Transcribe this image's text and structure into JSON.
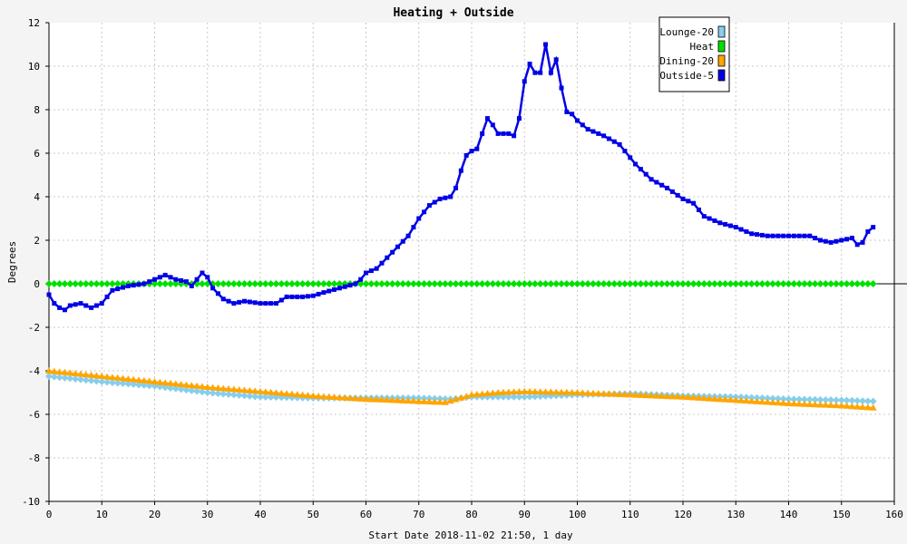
{
  "chart_data": {
    "type": "line",
    "title": "Heating + Outside",
    "xlabel": "Start Date 2018-11-02 21:50, 1 day",
    "ylabel": "Degrees",
    "xlim": [
      0,
      160
    ],
    "ylim": [
      -10,
      12
    ],
    "xticks": [
      0,
      10,
      20,
      30,
      40,
      50,
      60,
      70,
      80,
      90,
      100,
      110,
      120,
      130,
      140,
      150,
      160
    ],
    "yticks": [
      -10,
      -8,
      -6,
      -4,
      -2,
      0,
      2,
      4,
      6,
      8,
      10,
      12
    ],
    "grid": true,
    "legend_position": "top-right",
    "series": [
      {
        "name": "Lounge-20",
        "color": "#87ceeb",
        "marker": "diamond",
        "points": [
          [
            0,
            -4.25
          ],
          [
            10,
            -4.5
          ],
          [
            20,
            -4.7
          ],
          [
            30,
            -5.0
          ],
          [
            40,
            -5.2
          ],
          [
            50,
            -5.25
          ],
          [
            60,
            -5.25
          ],
          [
            70,
            -5.25
          ],
          [
            76,
            -5.3
          ],
          [
            80,
            -5.2
          ],
          [
            90,
            -5.2
          ],
          [
            100,
            -5.1
          ],
          [
            110,
            -5.05
          ],
          [
            120,
            -5.15
          ],
          [
            130,
            -5.2
          ],
          [
            140,
            -5.3
          ],
          [
            150,
            -5.35
          ],
          [
            156,
            -5.4
          ]
        ]
      },
      {
        "name": "Heat",
        "color": "#00e000",
        "marker": "diamond",
        "points": [
          [
            0,
            0
          ],
          [
            156,
            0
          ]
        ]
      },
      {
        "name": "Dining-20",
        "color": "#ffa500",
        "marker": "triangle",
        "points": [
          [
            0,
            -4.0
          ],
          [
            10,
            -4.25
          ],
          [
            20,
            -4.5
          ],
          [
            30,
            -4.75
          ],
          [
            40,
            -4.95
          ],
          [
            50,
            -5.15
          ],
          [
            60,
            -5.3
          ],
          [
            70,
            -5.4
          ],
          [
            75,
            -5.45
          ],
          [
            80,
            -5.1
          ],
          [
            85,
            -5.0
          ],
          [
            90,
            -4.95
          ],
          [
            100,
            -5.0
          ],
          [
            110,
            -5.1
          ],
          [
            120,
            -5.2
          ],
          [
            130,
            -5.35
          ],
          [
            140,
            -5.5
          ],
          [
            150,
            -5.6
          ],
          [
            156,
            -5.7
          ]
        ]
      },
      {
        "name": "Outside-5",
        "color": "#0000e6",
        "marker": "square",
        "points": [
          [
            0,
            -0.5
          ],
          [
            1,
            -0.9
          ],
          [
            2,
            -1.1
          ],
          [
            3,
            -1.2
          ],
          [
            4,
            -1.0
          ],
          [
            6,
            -0.9
          ],
          [
            8,
            -1.1
          ],
          [
            10,
            -0.9
          ],
          [
            12,
            -0.3
          ],
          [
            15,
            -0.1
          ],
          [
            18,
            0.0
          ],
          [
            20,
            0.2
          ],
          [
            22,
            0.4
          ],
          [
            24,
            0.2
          ],
          [
            26,
            0.1
          ],
          [
            27,
            -0.1
          ],
          [
            28,
            0.2
          ],
          [
            29,
            0.5
          ],
          [
            30,
            0.3
          ],
          [
            31,
            -0.2
          ],
          [
            33,
            -0.7
          ],
          [
            35,
            -0.9
          ],
          [
            37,
            -0.8
          ],
          [
            40,
            -0.9
          ],
          [
            43,
            -0.9
          ],
          [
            45,
            -0.6
          ],
          [
            48,
            -0.6
          ],
          [
            50,
            -0.55
          ],
          [
            52,
            -0.4
          ],
          [
            55,
            -0.2
          ],
          [
            58,
            0.0
          ],
          [
            59,
            0.2
          ],
          [
            60,
            0.5
          ],
          [
            62,
            0.7
          ],
          [
            64,
            1.2
          ],
          [
            66,
            1.7
          ],
          [
            68,
            2.2
          ],
          [
            70,
            3.0
          ],
          [
            72,
            3.6
          ],
          [
            74,
            3.9
          ],
          [
            76,
            4.0
          ],
          [
            77,
            4.4
          ],
          [
            78,
            5.2
          ],
          [
            79,
            5.9
          ],
          [
            80,
            6.1
          ],
          [
            81,
            6.2
          ],
          [
            82,
            6.9
          ],
          [
            83,
            7.6
          ],
          [
            84,
            7.3
          ],
          [
            85,
            6.9
          ],
          [
            87,
            6.9
          ],
          [
            88,
            6.8
          ],
          [
            89,
            7.6
          ],
          [
            90,
            9.3
          ],
          [
            91,
            10.1
          ],
          [
            92,
            9.7
          ],
          [
            93,
            9.7
          ],
          [
            94,
            11.0
          ],
          [
            95,
            9.7
          ],
          [
            96,
            10.3
          ],
          [
            97,
            9.0
          ],
          [
            98,
            7.9
          ],
          [
            99,
            7.8
          ],
          [
            100,
            7.5
          ],
          [
            102,
            7.1
          ],
          [
            105,
            6.8
          ],
          [
            108,
            6.4
          ],
          [
            111,
            5.5
          ],
          [
            114,
            4.8
          ],
          [
            117,
            4.4
          ],
          [
            120,
            3.9
          ],
          [
            122,
            3.7
          ],
          [
            124,
            3.1
          ],
          [
            127,
            2.8
          ],
          [
            130,
            2.6
          ],
          [
            133,
            2.3
          ],
          [
            136,
            2.2
          ],
          [
            140,
            2.2
          ],
          [
            144,
            2.2
          ],
          [
            146,
            2.0
          ],
          [
            148,
            1.9
          ],
          [
            150,
            2.0
          ],
          [
            152,
            2.1
          ],
          [
            153,
            1.8
          ],
          [
            154,
            1.9
          ],
          [
            155,
            2.4
          ],
          [
            156,
            2.6
          ]
        ]
      }
    ]
  }
}
